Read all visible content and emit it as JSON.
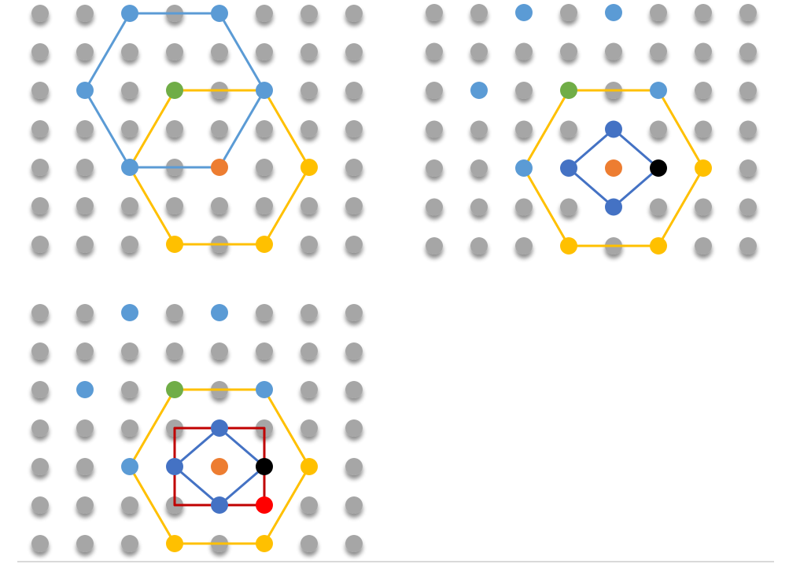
{
  "colors": {
    "background": "#ffffff",
    "grid_dot": "#a6a6a6",
    "light_blue": "#5b9bd5",
    "dark_blue": "#4472c4",
    "green": "#70ad47",
    "orange": "#ed7d31",
    "yellow": "#ffc000",
    "black": "#000000",
    "red": "#ff0000",
    "dark_red": "#c00000"
  },
  "panels": [
    {
      "id": "panel-1",
      "grid": {
        "cols": 8,
        "rows": 7
      },
      "points": [
        {
          "col": 2,
          "row": 0,
          "color": "light_blue"
        },
        {
          "col": 4,
          "row": 0,
          "color": "light_blue"
        },
        {
          "col": 1,
          "row": 2,
          "color": "light_blue"
        },
        {
          "col": 5,
          "row": 2,
          "color": "light_blue"
        },
        {
          "col": 2,
          "row": 4,
          "color": "light_blue"
        },
        {
          "col": 3,
          "row": 2,
          "color": "green"
        },
        {
          "col": 4,
          "row": 4,
          "color": "orange"
        },
        {
          "col": 6,
          "row": 4,
          "color": "yellow"
        },
        {
          "col": 3,
          "row": 6,
          "color": "yellow"
        },
        {
          "col": 5,
          "row": 6,
          "color": "yellow"
        }
      ],
      "shapes": [
        {
          "name": "blue-hexagon",
          "color": "light_blue",
          "vertices": [
            [
              2,
              0
            ],
            [
              4,
              0
            ],
            [
              5,
              2
            ],
            [
              4,
              4
            ],
            [
              2,
              4
            ],
            [
              1,
              2
            ]
          ]
        },
        {
          "name": "yellow-hexagon",
          "color": "yellow",
          "vertices": [
            [
              3,
              2
            ],
            [
              5,
              2
            ],
            [
              6,
              4
            ],
            [
              5,
              6
            ],
            [
              3,
              6
            ],
            [
              2,
              4
            ]
          ]
        }
      ]
    },
    {
      "id": "panel-2",
      "grid": {
        "cols": 8,
        "rows": 7
      },
      "points": [
        {
          "col": 2,
          "row": 0,
          "color": "light_blue"
        },
        {
          "col": 4,
          "row": 0,
          "color": "light_blue"
        },
        {
          "col": 1,
          "row": 2,
          "color": "light_blue"
        },
        {
          "col": 5,
          "row": 2,
          "color": "light_blue"
        },
        {
          "col": 2,
          "row": 4,
          "color": "light_blue"
        },
        {
          "col": 3,
          "row": 2,
          "color": "green"
        },
        {
          "col": 4,
          "row": 4,
          "color": "orange"
        },
        {
          "col": 6,
          "row": 4,
          "color": "yellow"
        },
        {
          "col": 3,
          "row": 6,
          "color": "yellow"
        },
        {
          "col": 5,
          "row": 6,
          "color": "yellow"
        },
        {
          "col": 4,
          "row": 3,
          "color": "dark_blue"
        },
        {
          "col": 3,
          "row": 4,
          "color": "dark_blue"
        },
        {
          "col": 4,
          "row": 5,
          "color": "dark_blue"
        },
        {
          "col": 5,
          "row": 4,
          "color": "black"
        }
      ],
      "shapes": [
        {
          "name": "yellow-hexagon",
          "color": "yellow",
          "vertices": [
            [
              3,
              2
            ],
            [
              5,
              2
            ],
            [
              6,
              4
            ],
            [
              5,
              6
            ],
            [
              3,
              6
            ],
            [
              2,
              4
            ]
          ]
        },
        {
          "name": "blue-diamond",
          "color": "dark_blue",
          "vertices": [
            [
              4,
              3
            ],
            [
              5,
              4
            ],
            [
              4,
              5
            ],
            [
              3,
              4
            ]
          ]
        }
      ]
    },
    {
      "id": "panel-3",
      "grid": {
        "cols": 8,
        "rows": 7
      },
      "points": [
        {
          "col": 2,
          "row": 0,
          "color": "light_blue"
        },
        {
          "col": 4,
          "row": 0,
          "color": "light_blue"
        },
        {
          "col": 1,
          "row": 2,
          "color": "light_blue"
        },
        {
          "col": 5,
          "row": 2,
          "color": "light_blue"
        },
        {
          "col": 2,
          "row": 4,
          "color": "light_blue"
        },
        {
          "col": 3,
          "row": 2,
          "color": "green"
        },
        {
          "col": 4,
          "row": 4,
          "color": "orange"
        },
        {
          "col": 6,
          "row": 4,
          "color": "yellow"
        },
        {
          "col": 3,
          "row": 6,
          "color": "yellow"
        },
        {
          "col": 5,
          "row": 6,
          "color": "yellow"
        },
        {
          "col": 4,
          "row": 3,
          "color": "dark_blue"
        },
        {
          "col": 3,
          "row": 4,
          "color": "dark_blue"
        },
        {
          "col": 4,
          "row": 5,
          "color": "dark_blue"
        },
        {
          "col": 5,
          "row": 4,
          "color": "black"
        },
        {
          "col": 5,
          "row": 5,
          "color": "red"
        }
      ],
      "shapes": [
        {
          "name": "yellow-hexagon",
          "color": "yellow",
          "vertices": [
            [
              3,
              2
            ],
            [
              5,
              2
            ],
            [
              6,
              4
            ],
            [
              5,
              6
            ],
            [
              3,
              6
            ],
            [
              2,
              4
            ]
          ]
        },
        {
          "name": "red-square",
          "color": "dark_red",
          "vertices": [
            [
              3,
              3
            ],
            [
              5,
              3
            ],
            [
              5,
              5
            ],
            [
              3,
              5
            ]
          ]
        },
        {
          "name": "blue-diamond",
          "color": "dark_blue",
          "vertices": [
            [
              4,
              3
            ],
            [
              5,
              4
            ],
            [
              4,
              5
            ],
            [
              3,
              4
            ]
          ]
        }
      ]
    }
  ]
}
